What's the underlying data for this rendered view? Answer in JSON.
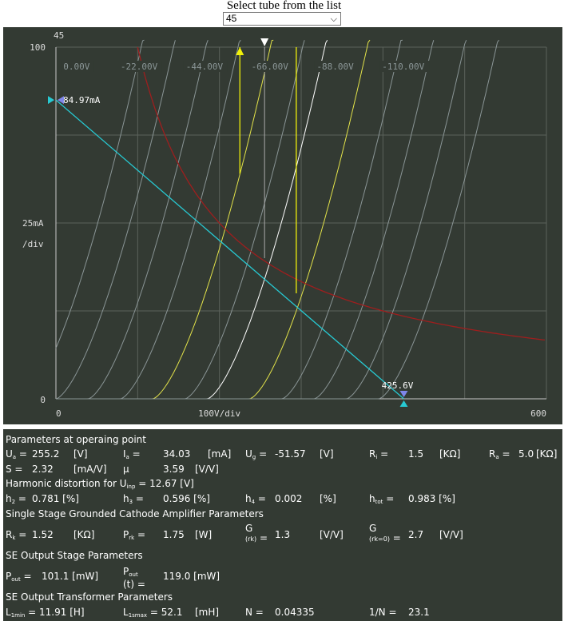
{
  "header": {
    "title": "Select tube from the list",
    "selected": "45"
  },
  "chart_data": {
    "type": "line",
    "title": "45",
    "xlabel": "100V/div",
    "ylabel": "25mA /div",
    "x_tick_labels": [
      "0",
      "100V/div",
      "600"
    ],
    "y_tick_labels": [
      "100",
      "25mA",
      "/div",
      "0"
    ],
    "xlim": [
      0,
      600
    ],
    "ylim": [
      0,
      100
    ],
    "grid": true,
    "grid_labels": [
      "0.00V",
      "-22.00V",
      "-44.00V",
      "-66.00V",
      "-88.00V",
      "-110.00V"
    ],
    "load_line": {
      "Ia_max_label": "84.97mA",
      "Ia_max": 84.97,
      "Ua_max_label": "425.6V",
      "Ua_max": 425.6
    },
    "operating_point": {
      "Ua": 255.2,
      "Ia": 34.03
    },
    "max_dissipation_watts": 10,
    "colors": {
      "background": "#333a33",
      "grid": "#5b625b",
      "curve_gray": "#8a9596",
      "curve_yellow": "#e3e34a",
      "curve_white": "#ffffff",
      "load_line": "#27c9d2",
      "dissipation": "#9e1e1e",
      "marker_yellow": "#f1f10a",
      "marker_white": "#ffffff",
      "marker_blue": "#7f86ea"
    }
  },
  "params": {
    "section_operating": "Parameters at operaing point",
    "ua_label": "U",
    "ua_sub": "a",
    "ua_value": "255.2",
    "ua_unit": "[V]",
    "ia_label": "I",
    "ia_sub": "a",
    "ia_value": "34.03",
    "ia_unit": "[mA]",
    "ug_label": "U",
    "ug_sub": "g",
    "ug_value": "-51.57",
    "ug_unit": "[V]",
    "ri_label": "R",
    "ri_sub": "i",
    "ri_value": "1.5",
    "ri_unit": "[KΩ]",
    "ra_label": "R",
    "ra_sub": "a",
    "ra_value": "5.0",
    "ra_unit": "[KΩ]",
    "s_label": "S =",
    "s_value": "2.32",
    "s_unit": "[mA/V]",
    "mu_label": "μ",
    "mu_value": "3.59",
    "mu_unit": "[V/V]",
    "section_harmonic": "Harmonic distortion for U",
    "harmonic_sub": "inp",
    "harmonic_value": "= 12.67 [V]",
    "h2_label": "h",
    "h2_sub": "2",
    "h2_value": "0.781 [%]",
    "h3_label": "h",
    "h3_sub": "3",
    "h3_value": "0.596 [%]",
    "h4_label": "h",
    "h4_sub": "4",
    "h4_value": "0.002",
    "h4_unit": "[%]",
    "htot_label": "h",
    "htot_sub": "tot",
    "htot_value": "0.983 [%]",
    "section_single": "Single Stage Grounded Cathode Amplifier Parameters",
    "rk_label": "R",
    "rk_sub": "k",
    "rk_value": "1.52",
    "rk_unit": "[KΩ]",
    "prk_label": "P",
    "prk_sub": "rk",
    "prk_value": "1.75",
    "prk_unit": "[W]",
    "g_label": "G",
    "g1_sub": "(rk)",
    "g1_value": "1.3",
    "g1_unit": "[V/V]",
    "g2_sub": "(rk=0)",
    "g2_value": "2.7",
    "g2_unit": "[V/V]",
    "section_se": "SE Output Stage Parameters",
    "pout_label": "P",
    "pout_sub": "out",
    "pout_value": "101.1 [mW]",
    "poutt_label": "P",
    "poutt_sub": "out",
    "poutt_t": "(t)",
    "poutt_value": "119.0 [mW]",
    "section_transformer": "SE Output Transformer Parameters",
    "l1min_label": "L",
    "l1min_sub": "1min",
    "l1min_value": "= 11.91 [H]",
    "l1smax_label": "L",
    "l1smax_sub": "1smax",
    "l1smax_value": "= 52.1",
    "l1smax_unit": "[mH]",
    "n_label": "N =",
    "n_value": "0.04335",
    "invn_label": "1/N =",
    "invn_value": "23.1"
  }
}
